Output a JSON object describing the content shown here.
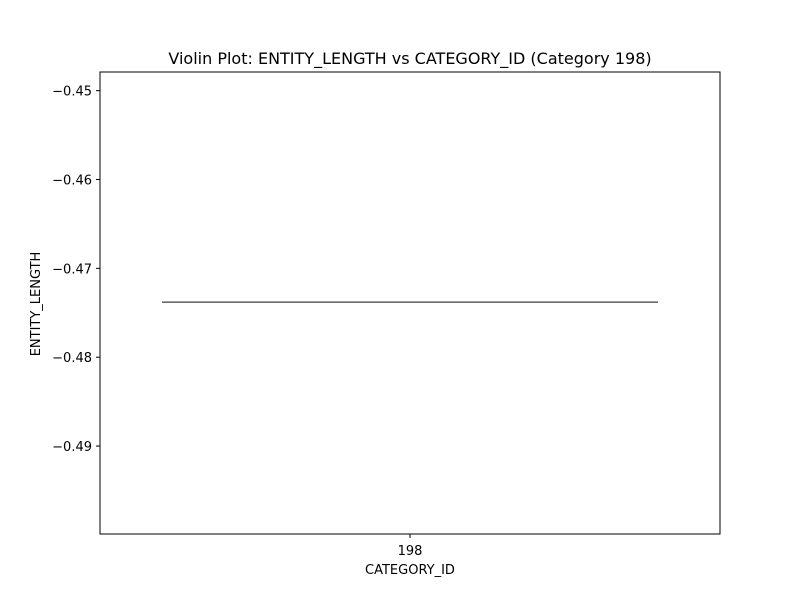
{
  "chart_data": {
    "type": "violin",
    "title": "Violin Plot: ENTITY_LENGTH vs CATEGORY_ID (Category 198)",
    "xlabel": "CATEGORY_ID",
    "ylabel": "ENTITY_LENGTH",
    "categories": [
      "198"
    ],
    "values": [
      -0.4738
    ],
    "ylim": [
      -0.4999,
      -0.4479
    ],
    "yticks": [
      -0.45,
      -0.46,
      -0.47,
      -0.48,
      -0.49
    ],
    "ytick_labels": [
      "−0.45",
      "−0.46",
      "−0.47",
      "−0.48",
      "−0.49"
    ],
    "grid": false,
    "legend": "none",
    "colors": {
      "line": "#3f3f3f",
      "axes": "#000000",
      "background": "#ffffff"
    }
  }
}
